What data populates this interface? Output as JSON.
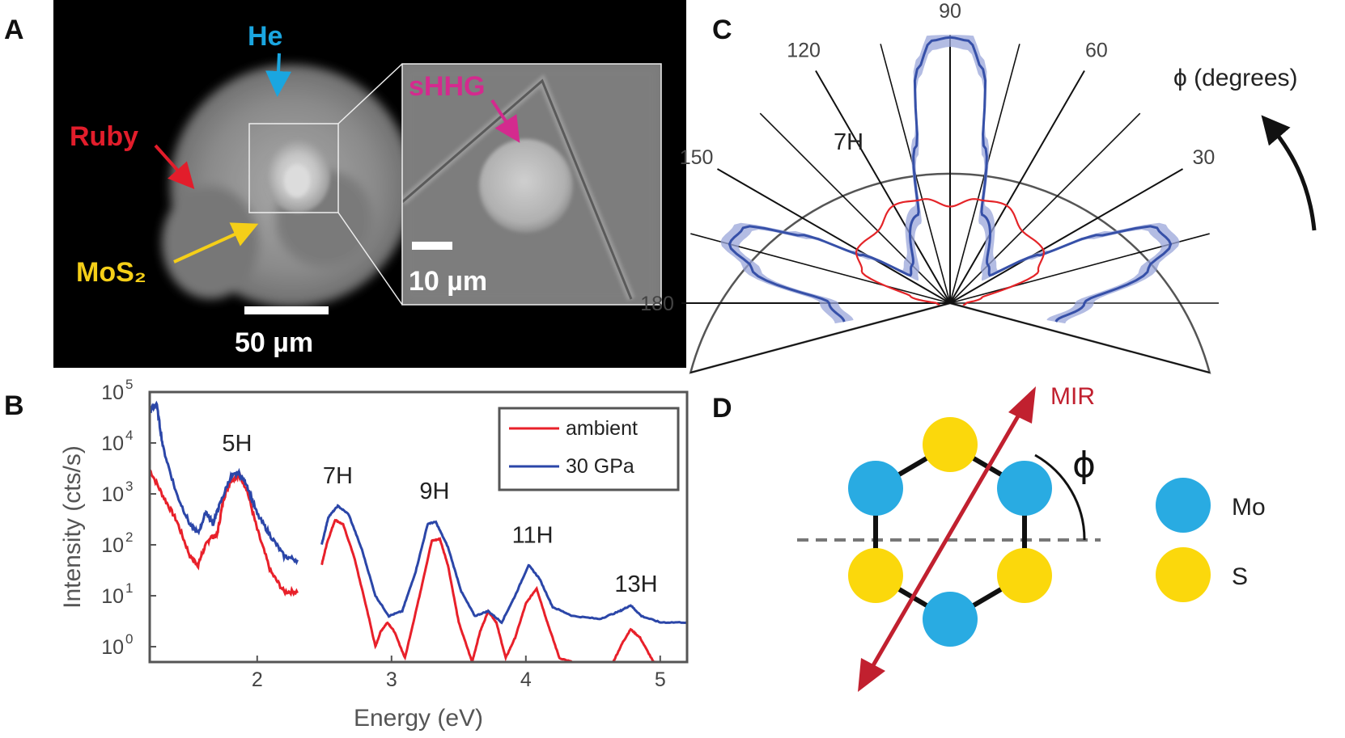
{
  "panels": {
    "a": {
      "letter": "A",
      "labels": {
        "he": "He",
        "ruby": "Ruby",
        "mos2": "MoS₂",
        "shhg": "sHHG"
      },
      "scalebars": {
        "main": "50 µm",
        "inset": "10 µm"
      },
      "colors": {
        "he": "#1aa6e0",
        "ruby": "#e21d2b",
        "mos2": "#f5cf18",
        "shhg": "#d42a8e"
      }
    },
    "b": {
      "letter": "B"
    },
    "c": {
      "letter": "C",
      "angle_label": "ϕ (degrees)",
      "harmonic": "7H"
    },
    "d": {
      "letter": "D",
      "mir": "MIR",
      "phi": "ϕ",
      "legend": [
        {
          "label": "Mo",
          "color": "#29abe2"
        },
        {
          "label": "S",
          "color": "#fbd80c"
        }
      ]
    }
  },
  "chart_data": [
    {
      "panel": "B",
      "type": "line",
      "xlabel": "Energy (eV)",
      "ylabel": "Intensity (cts/s)",
      "xlim": [
        1.2,
        5.2
      ],
      "ylim": [
        0.5,
        100000
      ],
      "yscale": "log",
      "xticks": [
        2,
        3,
        4,
        5
      ],
      "yticks": [
        1,
        10,
        100,
        1000,
        10000,
        100000
      ],
      "ytick_labels": [
        {
          "base": "10",
          "exp": "0"
        },
        {
          "base": "10",
          "exp": "1"
        },
        {
          "base": "10",
          "exp": "2"
        },
        {
          "base": "10",
          "exp": "3"
        },
        {
          "base": "10",
          "exp": "4"
        },
        {
          "base": "10",
          "exp": "5"
        }
      ],
      "legend_position": "top-right",
      "annotations": [
        {
          "text": "5H",
          "x": 1.85,
          "y": 7000
        },
        {
          "text": "7H",
          "x": 2.6,
          "y": 1600
        },
        {
          "text": "9H",
          "x": 3.32,
          "y": 800
        },
        {
          "text": "11H",
          "x": 4.05,
          "y": 110
        },
        {
          "text": "13H",
          "x": 4.82,
          "y": 12
        }
      ],
      "series": [
        {
          "name": "ambient",
          "color": "#e8202a",
          "segments": [
            [
              [
                1.2,
                3000
              ],
              [
                1.3,
                900
              ],
              [
                1.4,
                300
              ],
              [
                1.5,
                60
              ],
              [
                1.56,
                40
              ],
              [
                1.6,
                80
              ],
              [
                1.65,
                140
              ],
              [
                1.7,
                150
              ],
              [
                1.75,
                800
              ],
              [
                1.8,
                1800
              ],
              [
                1.86,
                2400
              ],
              [
                1.92,
                1300
              ],
              [
                2.0,
                200
              ],
              [
                2.1,
                30
              ],
              [
                2.2,
                12
              ],
              [
                2.3,
                12
              ]
            ],
            [
              [
                2.48,
                40
              ],
              [
                2.52,
                110
              ],
              [
                2.58,
                310
              ],
              [
                2.64,
                250
              ],
              [
                2.72,
                60
              ],
              [
                2.82,
                5
              ],
              [
                2.88,
                1
              ],
              [
                2.92,
                2
              ],
              [
                2.97,
                3
              ],
              [
                3.02,
                2
              ],
              [
                3.1,
                0.6
              ],
              [
                3.2,
                8
              ],
              [
                3.3,
                120
              ],
              [
                3.36,
                130
              ],
              [
                3.42,
                40
              ],
              [
                3.5,
                3
              ],
              [
                3.6,
                0.5
              ],
              [
                3.66,
                2
              ],
              [
                3.72,
                5
              ],
              [
                3.78,
                3
              ],
              [
                3.85,
                0.6
              ],
              [
                3.92,
                1.5
              ],
              [
                4.0,
                7
              ],
              [
                4.08,
                14
              ],
              [
                4.16,
                3
              ],
              [
                4.25,
                0.6
              ],
              [
                4.4,
                0.45
              ],
              [
                4.55,
                0.4
              ],
              [
                4.65,
                0.5
              ],
              [
                4.72,
                1.2
              ],
              [
                4.78,
                2.2
              ],
              [
                4.85,
                1.5
              ],
              [
                4.95,
                0.5
              ],
              [
                5.05,
                0.45
              ],
              [
                5.2,
                0.4
              ]
            ]
          ]
        },
        {
          "name": "30 GPa",
          "color": "#2b46a8",
          "segments": [
            [
              [
                1.2,
                40000
              ],
              [
                1.25,
                60000
              ],
              [
                1.3,
                8000
              ],
              [
                1.4,
                1000
              ],
              [
                1.5,
                250
              ],
              [
                1.56,
                170
              ],
              [
                1.62,
                450
              ],
              [
                1.67,
                260
              ],
              [
                1.72,
                600
              ],
              [
                1.8,
                2100
              ],
              [
                1.86,
                2600
              ],
              [
                1.92,
                1600
              ],
              [
                2.0,
                400
              ],
              [
                2.1,
                150
              ],
              [
                2.2,
                60
              ],
              [
                2.3,
                50
              ]
            ],
            [
              [
                2.48,
                100
              ],
              [
                2.53,
                350
              ],
              [
                2.6,
                580
              ],
              [
                2.68,
                400
              ],
              [
                2.78,
                80
              ],
              [
                2.88,
                10
              ],
              [
                2.98,
                4
              ],
              [
                3.08,
                5
              ],
              [
                3.18,
                30
              ],
              [
                3.27,
                260
              ],
              [
                3.33,
                280
              ],
              [
                3.42,
                90
              ],
              [
                3.52,
                12
              ],
              [
                3.62,
                4
              ],
              [
                3.72,
                5
              ],
              [
                3.82,
                3
              ],
              [
                3.92,
                10
              ],
              [
                4.02,
                40
              ],
              [
                4.1,
                22
              ],
              [
                4.2,
                6
              ],
              [
                4.35,
                4
              ],
              [
                4.55,
                3.5
              ],
              [
                4.7,
                5
              ],
              [
                4.78,
                6.5
              ],
              [
                4.86,
                4
              ],
              [
                5.0,
                3
              ],
              [
                5.2,
                3
              ]
            ]
          ]
        }
      ]
    },
    {
      "panel": "C",
      "type": "polar",
      "theta_unit": "degrees",
      "theta_range": [
        -15,
        195
      ],
      "theta_ticks": [
        30,
        60,
        90,
        120,
        150,
        180
      ],
      "series": [
        {
          "name": "30 GPa",
          "color": "#3650a8",
          "band_color": "#9aa6da",
          "points": [
            [
              -10,
              0.4
            ],
            [
              0,
              0.5
            ],
            [
              10,
              0.75
            ],
            [
              15,
              0.85
            ],
            [
              20,
              0.82
            ],
            [
              25,
              0.6
            ],
            [
              28,
              0.38
            ],
            [
              35,
              0.18
            ],
            [
              45,
              0.2
            ],
            [
              70,
              0.35
            ],
            [
              78,
              0.6
            ],
            [
              82,
              0.88
            ],
            [
              86,
              0.98
            ],
            [
              90,
              0.99
            ],
            [
              94,
              0.98
            ],
            [
              98,
              0.88
            ],
            [
              102,
              0.6
            ],
            [
              110,
              0.35
            ],
            [
              135,
              0.2
            ],
            [
              145,
              0.18
            ],
            [
              152,
              0.38
            ],
            [
              155,
              0.6
            ],
            [
              160,
              0.82
            ],
            [
              165,
              0.85
            ],
            [
              170,
              0.75
            ],
            [
              180,
              0.45
            ],
            [
              190,
              0.4
            ]
          ]
        },
        {
          "name": "ambient",
          "color": "#e42428",
          "points": [
            [
              -10,
              0.05
            ],
            [
              0,
              0.06
            ],
            [
              10,
              0.12
            ],
            [
              20,
              0.35
            ],
            [
              30,
              0.4
            ],
            [
              45,
              0.38
            ],
            [
              60,
              0.42
            ],
            [
              75,
              0.4
            ],
            [
              90,
              0.36
            ],
            [
              105,
              0.4
            ],
            [
              120,
              0.42
            ],
            [
              135,
              0.38
            ],
            [
              150,
              0.4
            ],
            [
              160,
              0.35
            ],
            [
              170,
              0.15
            ],
            [
              180,
              0.05
            ],
            [
              190,
              0.04
            ]
          ]
        }
      ]
    }
  ]
}
